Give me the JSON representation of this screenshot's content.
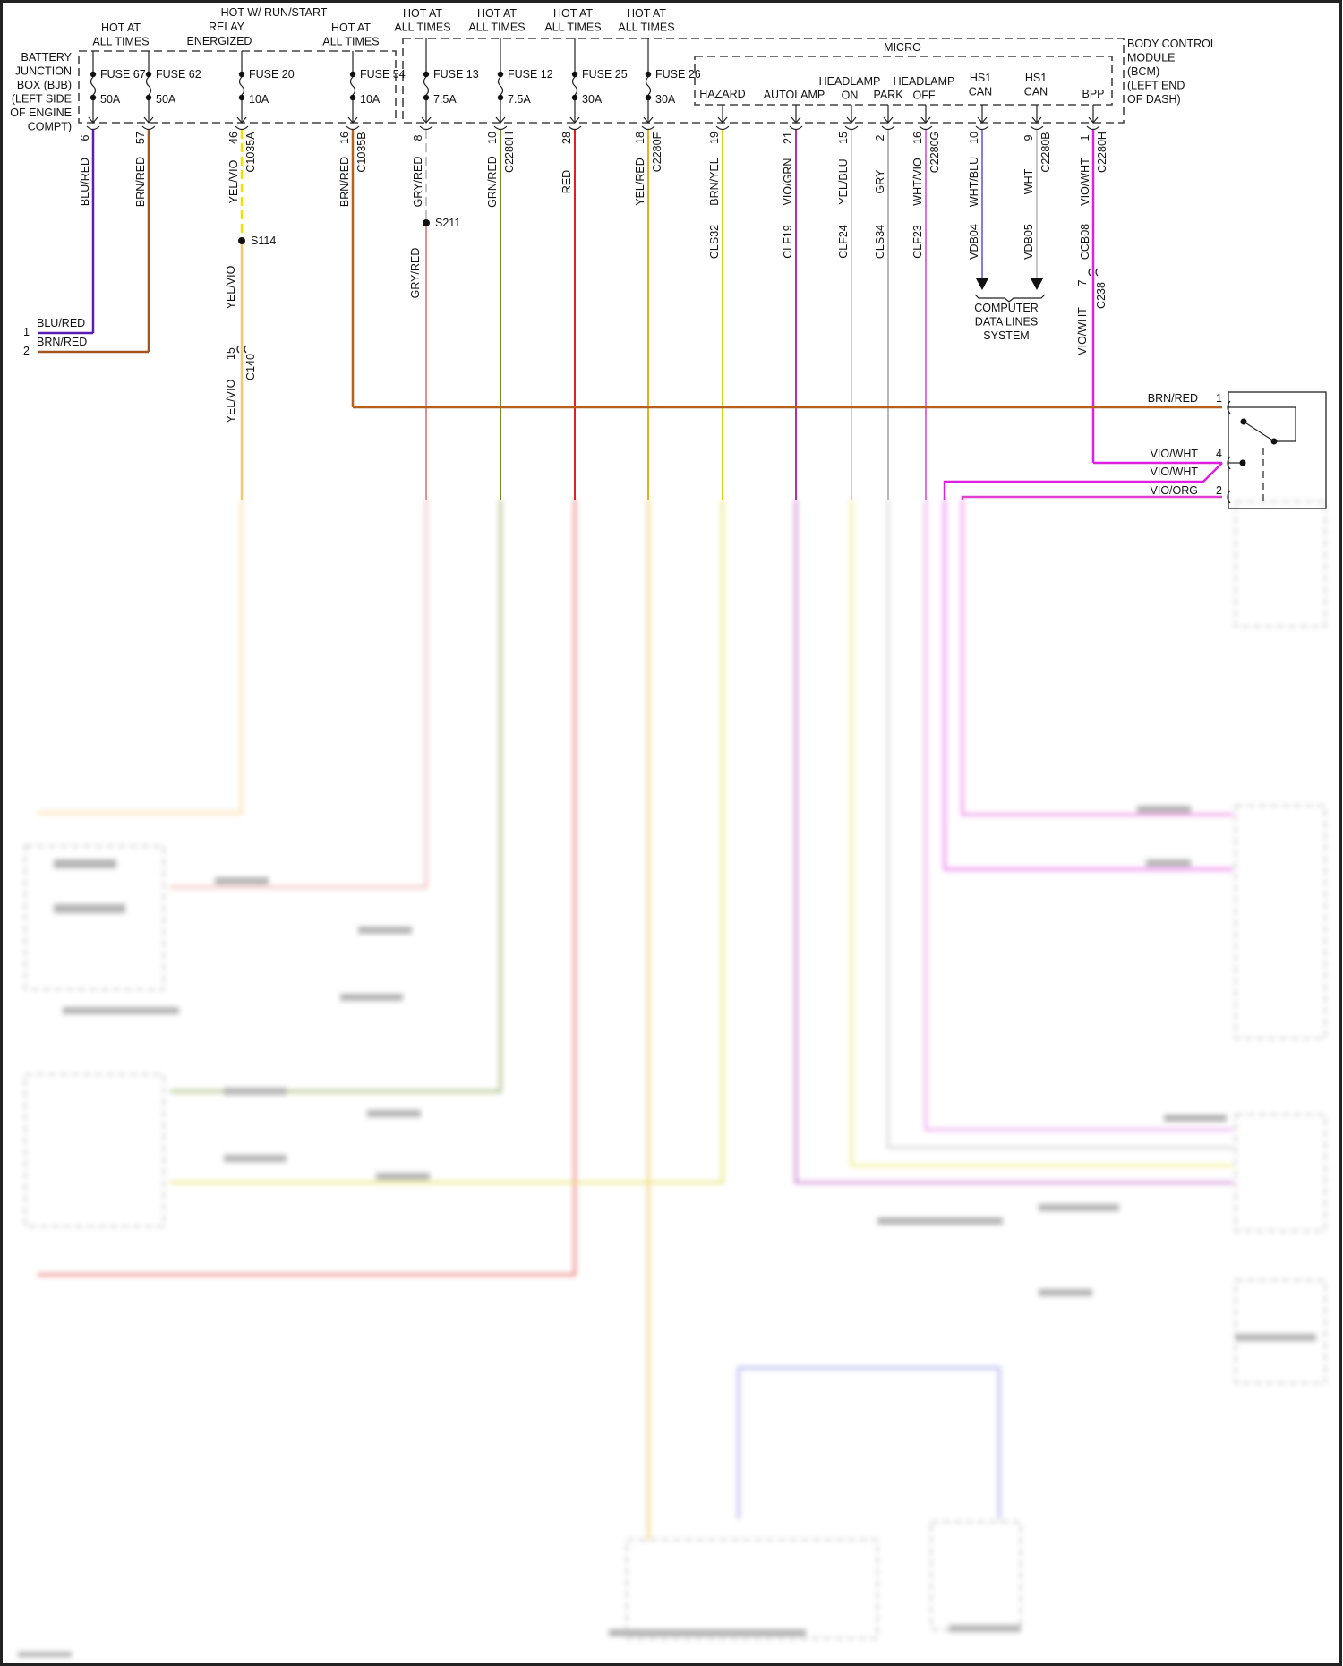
{
  "title_blocks": {
    "bjb_hot": [
      "HOT AT",
      "ALL TIMES"
    ],
    "run_start": [
      "HOT W/ RUN/START",
      "RELAY",
      "ENERGIZED"
    ],
    "fuse54_hot": [
      "HOT AT",
      "ALL TIMES"
    ],
    "fuse13_hot": [
      "HOT AT",
      "ALL TIMES"
    ],
    "fuse12_hot": [
      "HOT AT",
      "ALL TIMES"
    ],
    "fuse25_hot": [
      "HOT AT",
      "ALL TIMES"
    ],
    "fuse26_hot": [
      "HOT AT",
      "ALL TIMES"
    ]
  },
  "bjb": {
    "label": [
      "BATTERY",
      "JUNCTION",
      "BOX (BJB)",
      "(LEFT SIDE",
      "OF ENGINE",
      "COMPT)"
    ]
  },
  "bcm": {
    "label": [
      "BODY CONTROL",
      "MODULE",
      "(BCM)",
      "(LEFT END",
      "OF DASH)"
    ],
    "micro": "MICRO",
    "inputs": {
      "hazard": [
        "HAZARD"
      ],
      "autolamp": [
        "AUTOLAMP"
      ],
      "headlamp_on": [
        "HEADLAMP",
        "ON"
      ],
      "park": [
        "PARK"
      ],
      "headlamp_off": [
        "HEADLAMP",
        "OFF"
      ],
      "hs1_can_a": [
        "HS1",
        "CAN"
      ],
      "hs1_can_b": [
        "HS1",
        "CAN"
      ],
      "bpp": [
        "BPP"
      ]
    }
  },
  "fuses": [
    {
      "name": "FUSE 67",
      "rating": "50A"
    },
    {
      "name": "FUSE 62",
      "rating": "50A"
    },
    {
      "name": "FUSE 20",
      "rating": "10A"
    },
    {
      "name": "FUSE 54",
      "rating": "10A"
    },
    {
      "name": "FUSE 13",
      "rating": "7.5A"
    },
    {
      "name": "FUSE 12",
      "rating": "7.5A"
    },
    {
      "name": "FUSE 25",
      "rating": "30A"
    },
    {
      "name": "FUSE 26",
      "rating": "30A"
    }
  ],
  "wires": [
    {
      "label": "BLU/RED",
      "pin": "6",
      "connector": "",
      "circuit": "",
      "color": "#5b1fb5"
    },
    {
      "label": "BRN/RED",
      "pin": "57",
      "connector": "",
      "circuit": "",
      "color": "#a0561e"
    },
    {
      "label": "YEL/VIO",
      "pin": "46",
      "connector": "C1035A",
      "circuit": "",
      "color": "#f2e200"
    },
    {
      "label": "BRN/RED",
      "pin": "16",
      "connector": "C1035B",
      "circuit": "",
      "color": "#b5601d"
    },
    {
      "label": "GRY/RED",
      "pin": "8",
      "connector": "",
      "circuit": "",
      "color": "#c4c4c4"
    },
    {
      "label": "GRN/RED",
      "pin": "10",
      "connector": "C2280H",
      "circuit": "",
      "color": "#6b8e23"
    },
    {
      "label": "RED",
      "pin": "28",
      "connector": "",
      "circuit": "",
      "color": "#e02020"
    },
    {
      "label": "YEL/RED",
      "pin": "18",
      "connector": "C2280F",
      "circuit": "",
      "color": "#e8b020"
    },
    {
      "label": "BRN/YEL",
      "pin": "19",
      "connector": "",
      "circuit": "CLS32",
      "color": "#d8cf1a"
    },
    {
      "label": "VIO/GRN",
      "pin": "21",
      "connector": "",
      "circuit": "CLF19",
      "color": "#b030b0"
    },
    {
      "label": "YEL/BLU",
      "pin": "15",
      "connector": "",
      "circuit": "CLF24",
      "color": "#e2e23a"
    },
    {
      "label": "GRY",
      "pin": "2",
      "connector": "",
      "circuit": "CLS34",
      "color": "#b8b8b8"
    },
    {
      "label": "WHT/VIO",
      "pin": "16",
      "connector": "C2280G",
      "circuit": "CLF23",
      "color": "#e070e0"
    },
    {
      "label": "WHT/BLU",
      "pin": "10",
      "connector": "",
      "circuit": "VDB04",
      "color": "#8080e0"
    },
    {
      "label": "WHT",
      "pin": "9",
      "connector": "C2280B",
      "circuit": "VDB05",
      "color": "#c8c8c8"
    },
    {
      "label": "VIO/WHT",
      "pin": "1",
      "connector": "C2280H",
      "circuit": "CCB08",
      "color": "#e020e0"
    }
  ],
  "splices": {
    "s114": "S114",
    "s211": "S211"
  },
  "lower_labels": {
    "yelvio_lower": "YEL/VIO",
    "yelvio_lower2": "YEL/VIO",
    "c140_pin": "15",
    "c140": "C140",
    "gryred_lower": "GRY/RED",
    "c238_pin": "7",
    "c238": "C238",
    "viowht_lower": "VIO/WHT"
  },
  "left_terminals": [
    {
      "pin": "1",
      "label": "BLU/RED"
    },
    {
      "pin": "2",
      "label": "BRN/RED"
    }
  ],
  "computer_data_lines": [
    "COMPUTER",
    "DATA LINES",
    "SYSTEM"
  ],
  "switch_pins": [
    {
      "label": "BRN/RED",
      "pin": "1"
    },
    {
      "label": "VIO/WHT",
      "pin": "4"
    },
    {
      "label": "VIO/WHT",
      "pin": ""
    },
    {
      "label": "VIO/ORG",
      "pin": "2"
    }
  ],
  "extra_colors": {
    "vio_org": "#e040d0",
    "yelvio_lower": "#f5c870",
    "gryred_lower": "#e89090"
  }
}
